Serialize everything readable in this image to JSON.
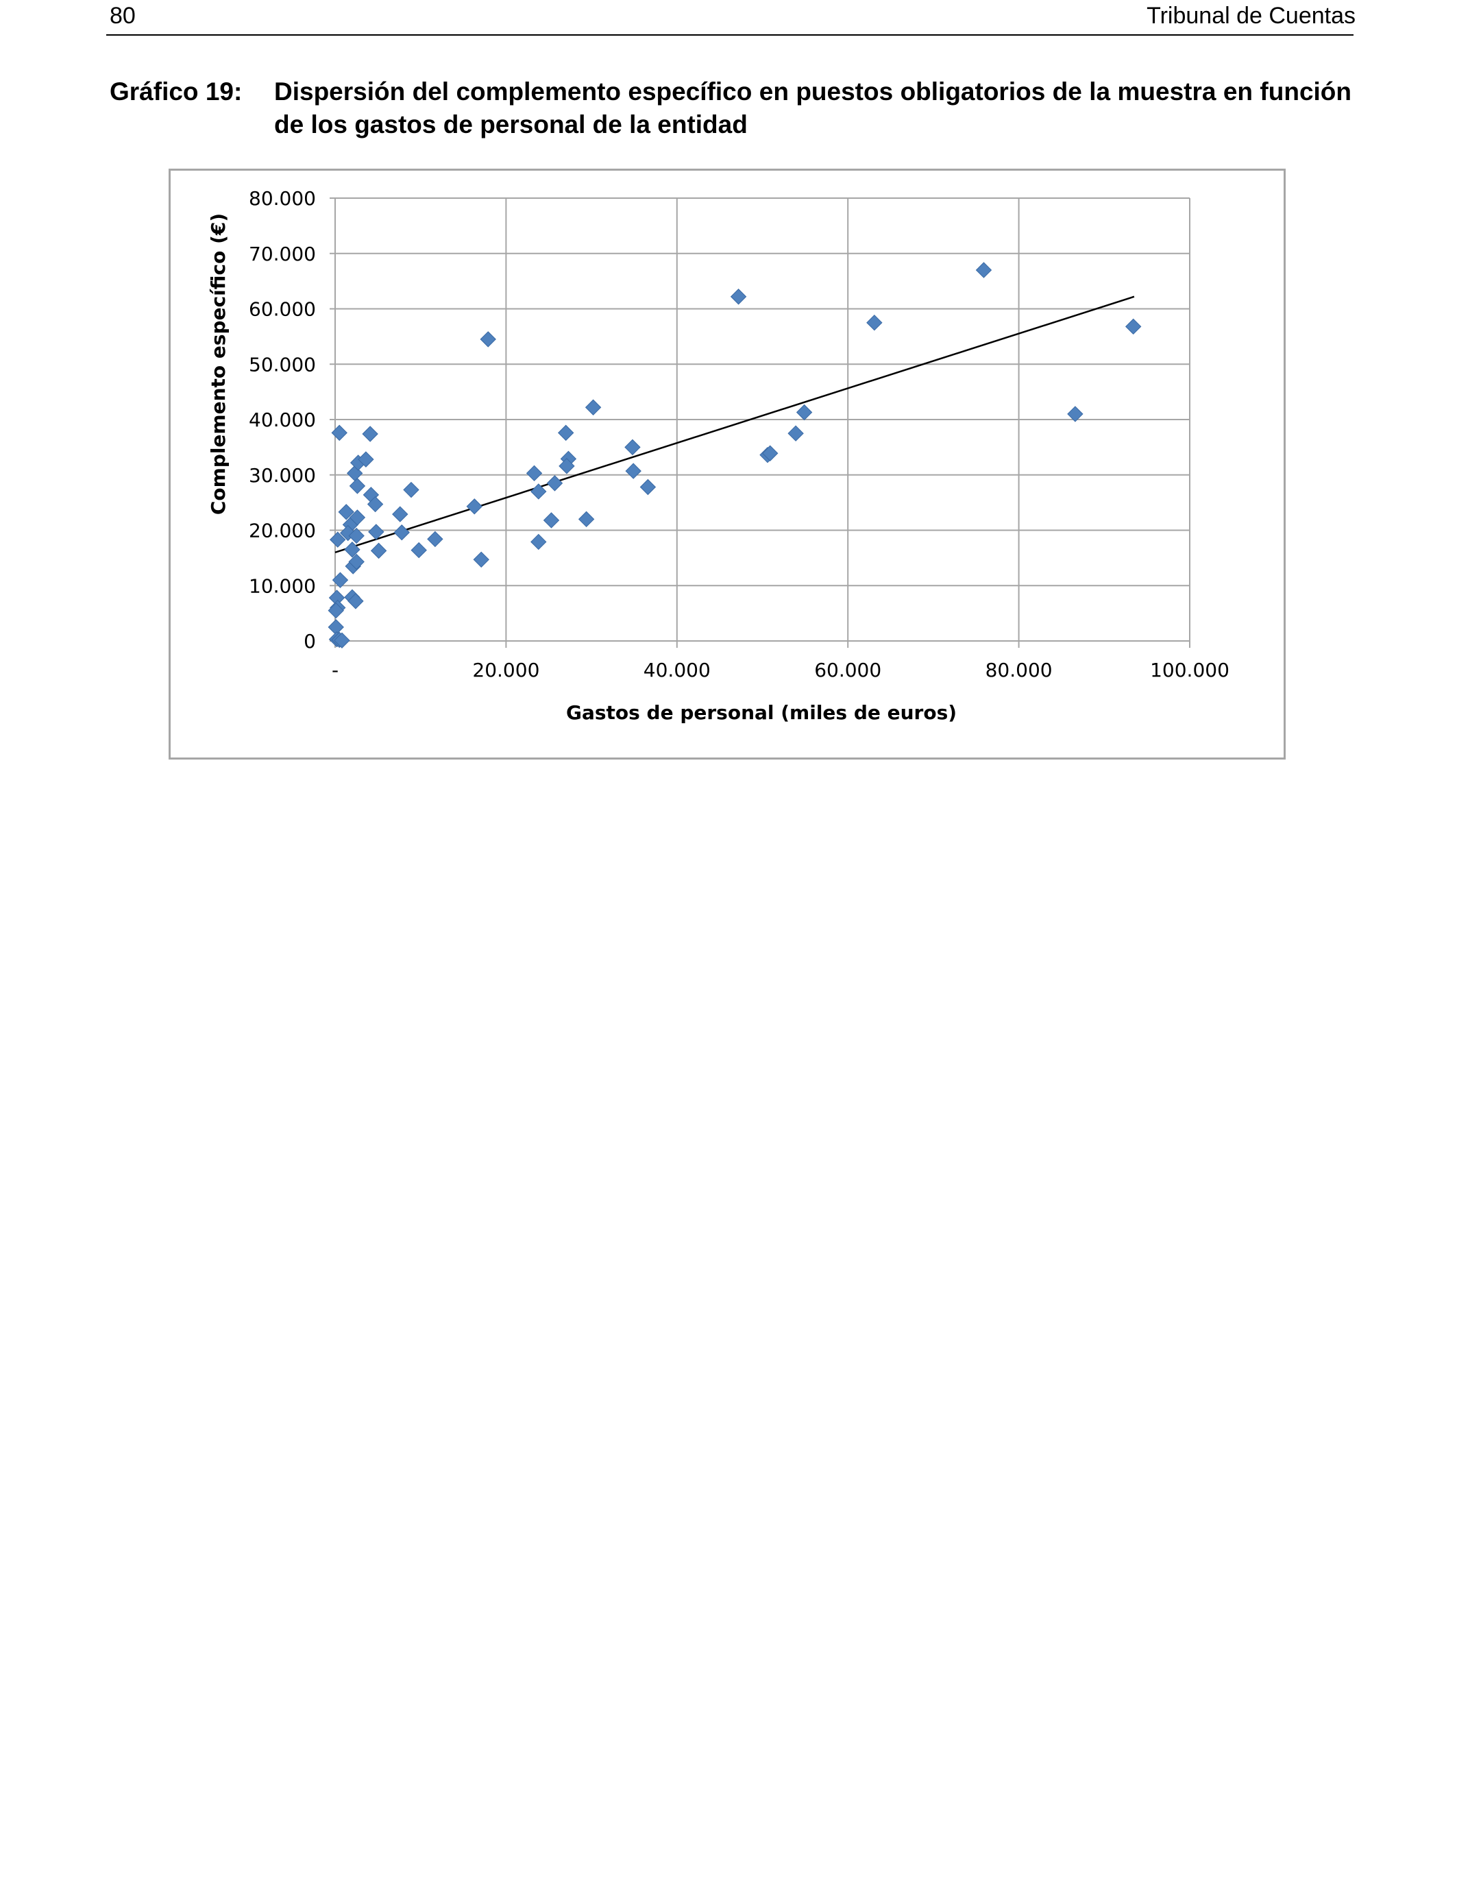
{
  "header": {
    "page_number": "80",
    "running_title": "Tribunal de Cuentas"
  },
  "caption": {
    "label": "Gráfico 19:",
    "text": "Dispersión del complemento específico en puestos obligatorios de la muestra en función de los gastos de personal de la entidad"
  },
  "colors": {
    "marker": "#4f81bd",
    "trendline": "#000000",
    "gridline": "#a6a6a6"
  },
  "chart_data": {
    "type": "scatter",
    "title": "",
    "xlabel": "Gastos de personal (miles de euros)",
    "ylabel": "Complemento específico (€)",
    "xlim": [
      0,
      100000
    ],
    "ylim": [
      0,
      80000
    ],
    "x_tick_labels": [
      "-",
      "20.000",
      "40.000",
      "60.000",
      "80.000",
      "100.000"
    ],
    "y_tick_labels": [
      "0",
      "10.000",
      "20.000",
      "30.000",
      "40.000",
      "50.000",
      "60.000",
      "70.000",
      "80.000"
    ],
    "grid": true,
    "legend": "none",
    "marker": "diamond",
    "trendline": {
      "type": "linear",
      "x": [
        0,
        93500
      ],
      "y": [
        16000,
        62200
      ]
    },
    "points": [
      {
        "x": 500,
        "y": 37600
      },
      {
        "x": 300,
        "y": 18300
      },
      {
        "x": 600,
        "y": 11000
      },
      {
        "x": 200,
        "y": 7800
      },
      {
        "x": 300,
        "y": 6000
      },
      {
        "x": 100,
        "y": 5500
      },
      {
        "x": 100,
        "y": 2500
      },
      {
        "x": 200,
        "y": 300
      },
      {
        "x": 500,
        "y": 200
      },
      {
        "x": 800,
        "y": 100
      },
      {
        "x": 1300,
        "y": 23300
      },
      {
        "x": 1800,
        "y": 21000
      },
      {
        "x": 1500,
        "y": 19500
      },
      {
        "x": 2000,
        "y": 16500
      },
      {
        "x": 2100,
        "y": 13500
      },
      {
        "x": 2500,
        "y": 14300
      },
      {
        "x": 2000,
        "y": 7900
      },
      {
        "x": 2400,
        "y": 7200
      },
      {
        "x": 2300,
        "y": 30300
      },
      {
        "x": 2700,
        "y": 32200
      },
      {
        "x": 2600,
        "y": 28000
      },
      {
        "x": 2600,
        "y": 22300
      },
      {
        "x": 2500,
        "y": 19000
      },
      {
        "x": 3600,
        "y": 32800
      },
      {
        "x": 4100,
        "y": 37400
      },
      {
        "x": 4200,
        "y": 26400
      },
      {
        "x": 4700,
        "y": 24700
      },
      {
        "x": 4800,
        "y": 19700
      },
      {
        "x": 5100,
        "y": 16300
      },
      {
        "x": 7600,
        "y": 22900
      },
      {
        "x": 7800,
        "y": 19600
      },
      {
        "x": 8900,
        "y": 27300
      },
      {
        "x": 9800,
        "y": 16400
      },
      {
        "x": 11700,
        "y": 18400
      },
      {
        "x": 16300,
        "y": 24300
      },
      {
        "x": 17100,
        "y": 14700
      },
      {
        "x": 17900,
        "y": 54500
      },
      {
        "x": 23300,
        "y": 30300
      },
      {
        "x": 23800,
        "y": 27000
      },
      {
        "x": 23800,
        "y": 17900
      },
      {
        "x": 25300,
        "y": 21800
      },
      {
        "x": 25700,
        "y": 28500
      },
      {
        "x": 27000,
        "y": 37600
      },
      {
        "x": 27300,
        "y": 32900
      },
      {
        "x": 27100,
        "y": 31600
      },
      {
        "x": 29400,
        "y": 22000
      },
      {
        "x": 30200,
        "y": 42200
      },
      {
        "x": 34800,
        "y": 35000
      },
      {
        "x": 34900,
        "y": 30700
      },
      {
        "x": 36600,
        "y": 27800
      },
      {
        "x": 47200,
        "y": 62200
      },
      {
        "x": 50600,
        "y": 33600
      },
      {
        "x": 50900,
        "y": 33900
      },
      {
        "x": 53900,
        "y": 37500
      },
      {
        "x": 54900,
        "y": 41300
      },
      {
        "x": 63100,
        "y": 57500
      },
      {
        "x": 75900,
        "y": 67000
      },
      {
        "x": 86600,
        "y": 41000
      },
      {
        "x": 93400,
        "y": 56800
      }
    ]
  }
}
